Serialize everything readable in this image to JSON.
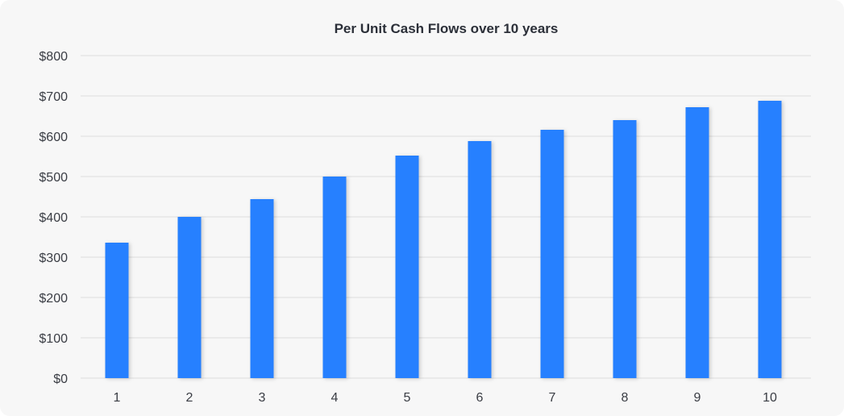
{
  "chart_data": {
    "type": "bar",
    "title": "Per Unit Cash Flows over 10 years",
    "xlabel": "",
    "ylabel": "",
    "categories": [
      "1",
      "2",
      "3",
      "4",
      "5",
      "6",
      "7",
      "8",
      "9",
      "10"
    ],
    "values": [
      336,
      400,
      444,
      500,
      552,
      588,
      616,
      640,
      672,
      688
    ],
    "ylim": [
      0,
      800
    ],
    "yticks": [
      0,
      100,
      200,
      300,
      400,
      500,
      600,
      700,
      800
    ],
    "ytick_labels": [
      "$0",
      "$100",
      "$200",
      "$300",
      "$400",
      "$500",
      "$600",
      "$700",
      "$800"
    ],
    "grid": true,
    "legend": "none",
    "colors": {
      "bar": "#2680ff",
      "grid": "#dcdcdc",
      "background": "#f7f7f7"
    }
  }
}
